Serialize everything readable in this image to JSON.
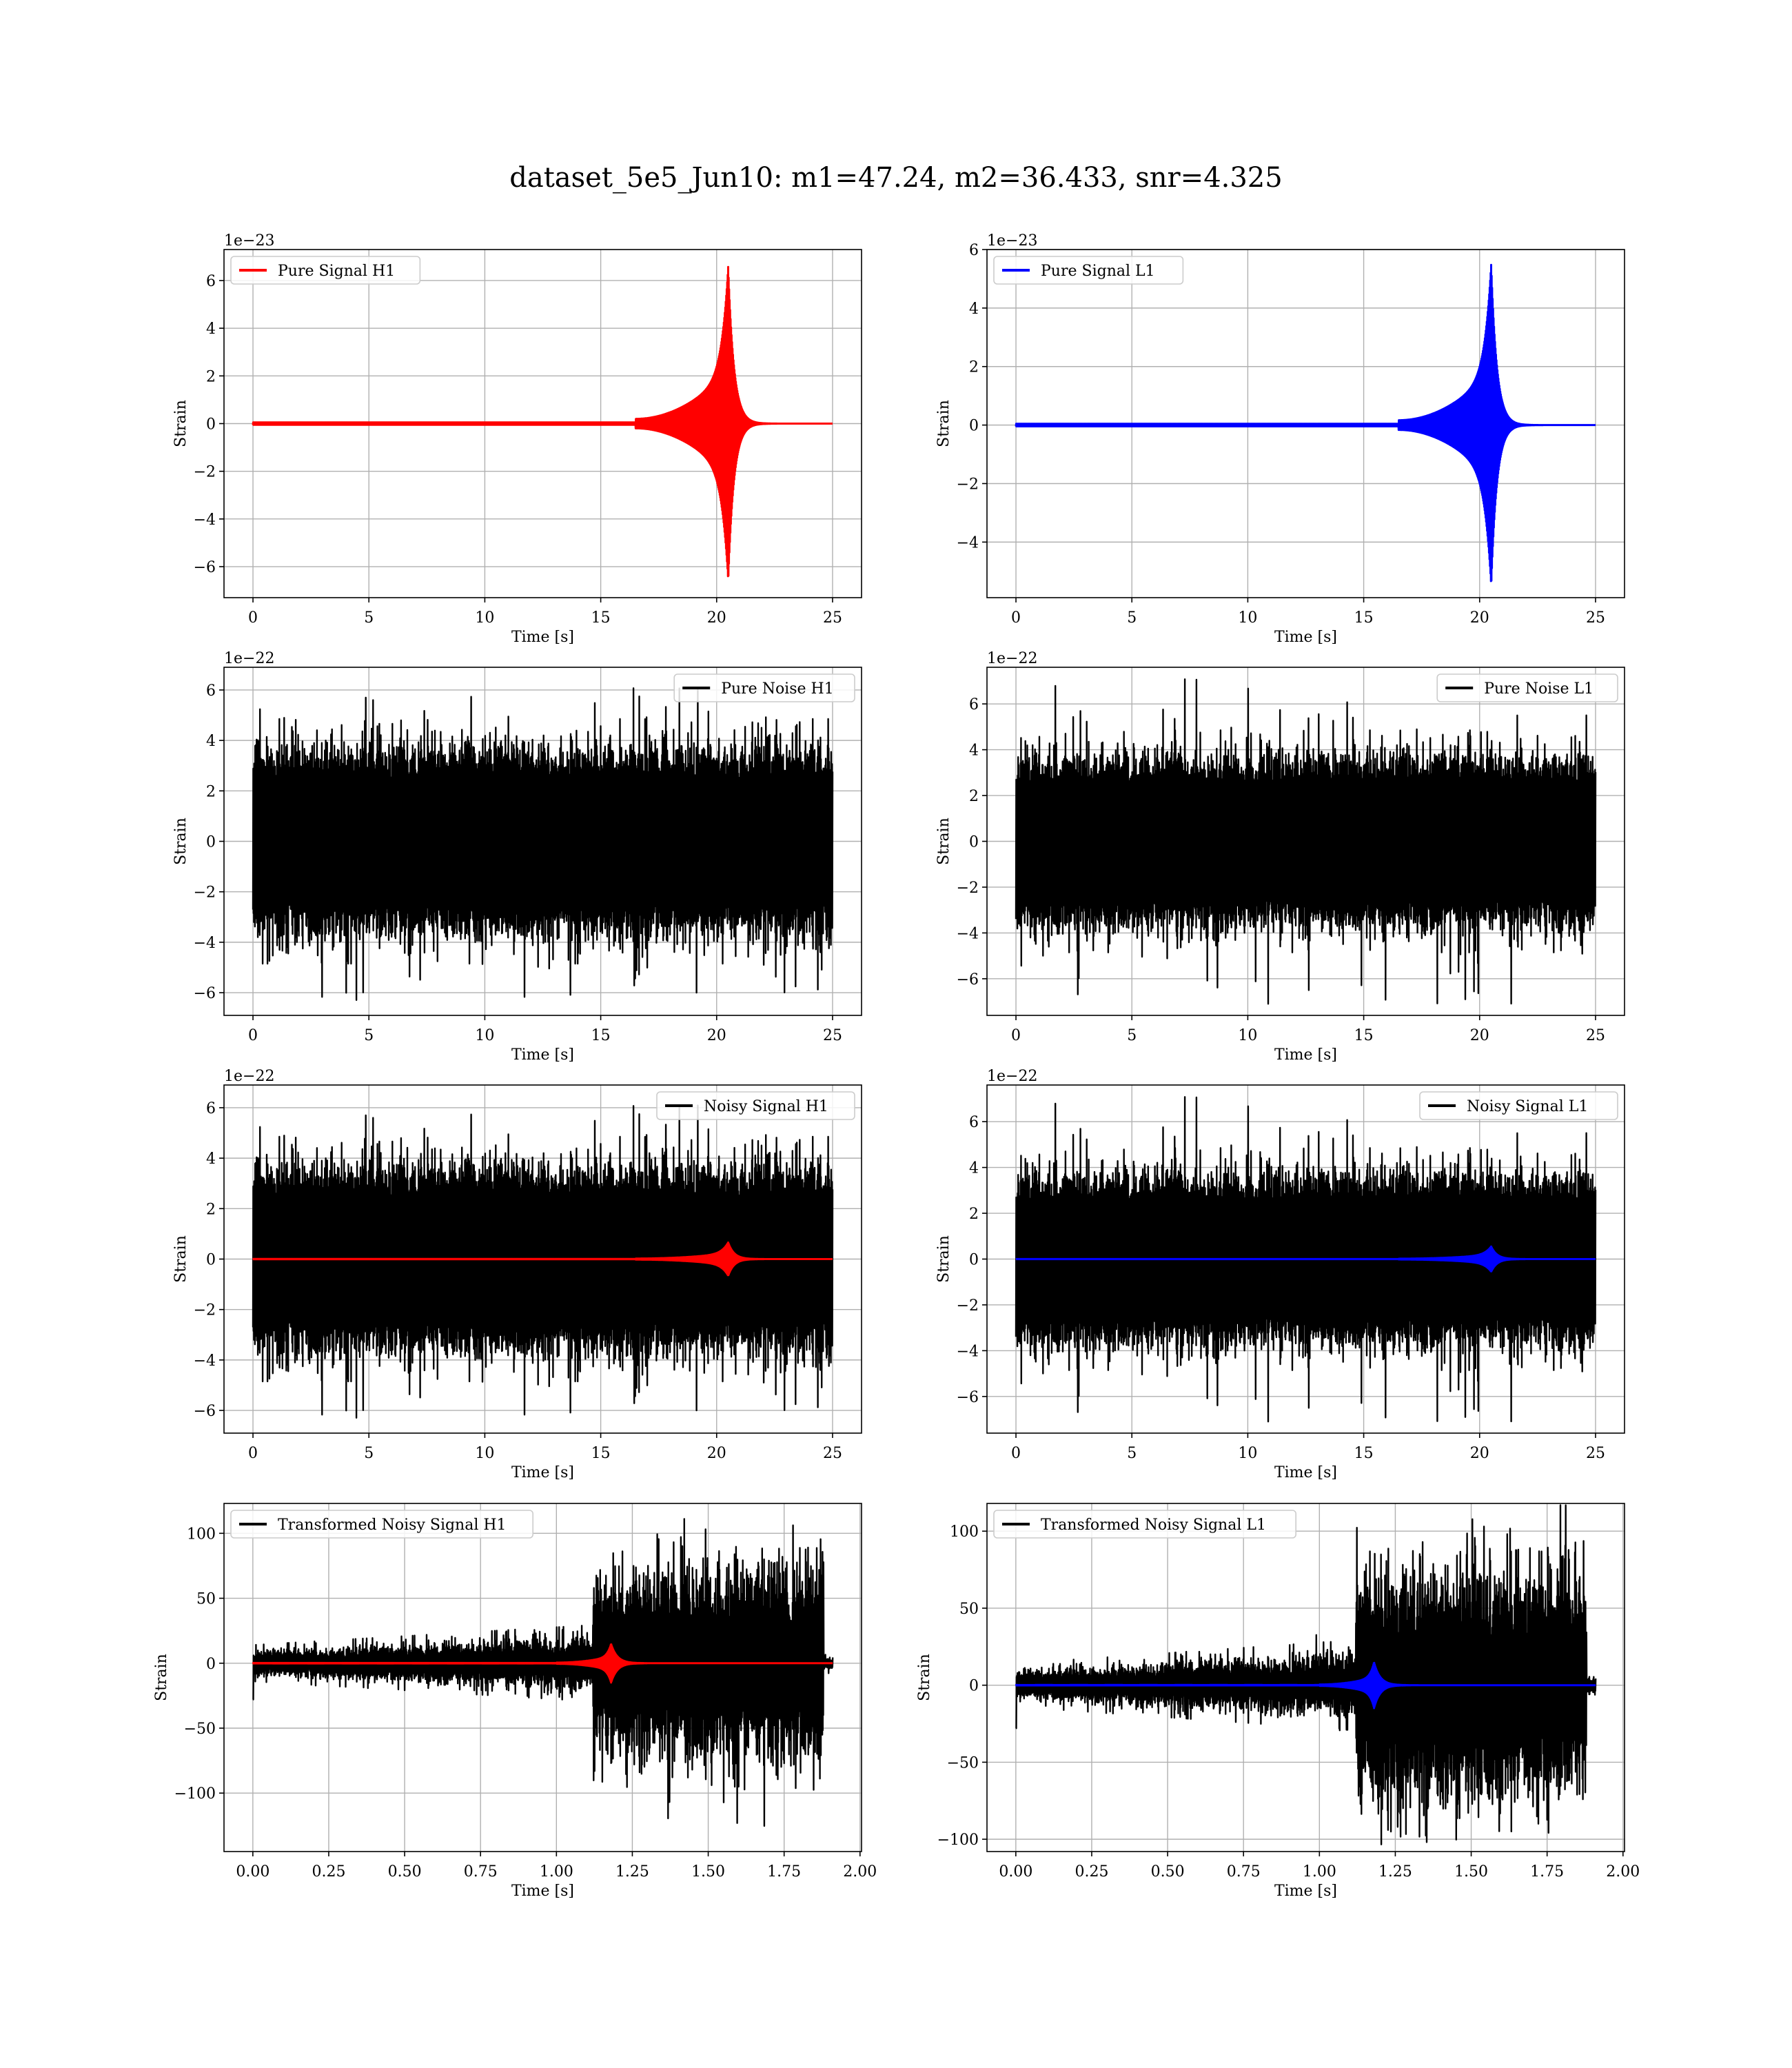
{
  "title": "dataset_5e5_Jun10: m1=47.24, m2=36.433, snr=4.325",
  "chart_data": [
    {
      "id": "pure-signal-h1",
      "type": "line",
      "x_range": [
        -1.25,
        26.25
      ],
      "ylim": [
        -7.3,
        7.3
      ],
      "xticks": [
        0,
        5,
        10,
        15,
        20,
        25
      ],
      "xtick_labels": [
        "0",
        "5",
        "10",
        "15",
        "20",
        "25"
      ],
      "yticks": [
        -6,
        -4,
        -2,
        0,
        2,
        4,
        6
      ],
      "ytick_labels": [
        "−6",
        "−4",
        "−2",
        "0",
        "2",
        "4",
        "6"
      ],
      "offset_text": "1e−23",
      "xlabel": "Time [s]",
      "ylabel": "Strain",
      "legend": "top-left",
      "grid": true,
      "series": [
        {
          "name": "Pure Signal H1",
          "color": "#ff0000",
          "kind": "chirp",
          "t_start": 0,
          "t_end": 25,
          "t_merge": 20.5,
          "peak": 6.6,
          "onset": 16.5
        }
      ]
    },
    {
      "id": "pure-signal-l1",
      "type": "line",
      "x_range": [
        -1.25,
        26.25
      ],
      "ylim": [
        -5.9,
        6.0
      ],
      "xticks": [
        0,
        5,
        10,
        15,
        20,
        25
      ],
      "xtick_labels": [
        "0",
        "5",
        "10",
        "15",
        "20",
        "25"
      ],
      "yticks": [
        -4,
        -2,
        0,
        2,
        4,
        6
      ],
      "ytick_labels": [
        "−4",
        "−2",
        "0",
        "2",
        "4",
        "6"
      ],
      "offset_text": "1e−23",
      "xlabel": "Time [s]",
      "ylabel": "Strain",
      "legend": "top-left",
      "grid": true,
      "series": [
        {
          "name": "Pure Signal L1",
          "color": "#0000ff",
          "kind": "chirp",
          "t_start": 0,
          "t_end": 25,
          "t_merge": 20.5,
          "peak": 5.5,
          "onset": 16.5
        }
      ]
    },
    {
      "id": "pure-noise-h1",
      "type": "line",
      "x_range": [
        -1.25,
        26.25
      ],
      "ylim": [
        -6.9,
        6.9
      ],
      "xticks": [
        0,
        5,
        10,
        15,
        20,
        25
      ],
      "xtick_labels": [
        "0",
        "5",
        "10",
        "15",
        "20",
        "25"
      ],
      "yticks": [
        -6,
        -4,
        -2,
        0,
        2,
        4,
        6
      ],
      "ytick_labels": [
        "−6",
        "−4",
        "−2",
        "0",
        "2",
        "4",
        "6"
      ],
      "offset_text": "1e−22",
      "xlabel": "Time [s]",
      "ylabel": "Strain",
      "legend": "top-right",
      "grid": true,
      "series": [
        {
          "name": "Pure Noise H1",
          "color": "#000000",
          "kind": "noise",
          "t_start": 0,
          "t_end": 25,
          "band": 3.3,
          "peak": 6.3,
          "seed": 11
        }
      ]
    },
    {
      "id": "pure-noise-l1",
      "type": "line",
      "x_range": [
        -1.25,
        26.25
      ],
      "ylim": [
        -7.6,
        7.6
      ],
      "xticks": [
        0,
        5,
        10,
        15,
        20,
        25
      ],
      "xtick_labels": [
        "0",
        "5",
        "10",
        "15",
        "20",
        "25"
      ],
      "yticks": [
        -6,
        -4,
        -2,
        0,
        2,
        4,
        6
      ],
      "ytick_labels": [
        "−6",
        "−4",
        "−2",
        "0",
        "2",
        "4",
        "6"
      ],
      "offset_text": "1e−22",
      "xlabel": "Time [s]",
      "ylabel": "Strain",
      "legend": "top-right",
      "grid": true,
      "series": [
        {
          "name": "Pure Noise L1",
          "color": "#000000",
          "kind": "noise",
          "t_start": 0,
          "t_end": 25,
          "band": 3.3,
          "peak": 7.1,
          "seed": 23
        }
      ]
    },
    {
      "id": "noisy-signal-h1",
      "type": "line",
      "x_range": [
        -1.25,
        26.25
      ],
      "ylim": [
        -6.9,
        6.9
      ],
      "xticks": [
        0,
        5,
        10,
        15,
        20,
        25
      ],
      "xtick_labels": [
        "0",
        "5",
        "10",
        "15",
        "20",
        "25"
      ],
      "yticks": [
        -6,
        -4,
        -2,
        0,
        2,
        4,
        6
      ],
      "ytick_labels": [
        "−6",
        "−4",
        "−2",
        "0",
        "2",
        "4",
        "6"
      ],
      "offset_text": "1e−22",
      "xlabel": "Time [s]",
      "ylabel": "Strain",
      "legend": "top-right",
      "grid": true,
      "series": [
        {
          "name": "Noisy Signal H1",
          "color": "#000000",
          "kind": "noise",
          "t_start": 0,
          "t_end": 25,
          "band": 3.3,
          "peak": 6.3,
          "seed": 11
        },
        {
          "name": "",
          "color": "#ff0000",
          "kind": "chirp",
          "t_start": 0,
          "t_end": 25,
          "t_merge": 20.5,
          "peak": 0.66,
          "onset": 16.5
        }
      ]
    },
    {
      "id": "noisy-signal-l1",
      "type": "line",
      "x_range": [
        -1.25,
        26.25
      ],
      "ylim": [
        -7.6,
        7.6
      ],
      "xticks": [
        0,
        5,
        10,
        15,
        20,
        25
      ],
      "xtick_labels": [
        "0",
        "5",
        "10",
        "15",
        "20",
        "25"
      ],
      "yticks": [
        -6,
        -4,
        -2,
        0,
        2,
        4,
        6
      ],
      "ytick_labels": [
        "−6",
        "−4",
        "−2",
        "0",
        "2",
        "4",
        "6"
      ],
      "offset_text": "1e−22",
      "xlabel": "Time [s]",
      "ylabel": "Strain",
      "legend": "top-right",
      "grid": true,
      "series": [
        {
          "name": "Noisy Signal L1",
          "color": "#000000",
          "kind": "noise",
          "t_start": 0,
          "t_end": 25,
          "band": 3.3,
          "peak": 7.1,
          "seed": 23
        },
        {
          "name": "",
          "color": "#0000ff",
          "kind": "chirp",
          "t_start": 0,
          "t_end": 25,
          "t_merge": 20.5,
          "peak": 0.55,
          "onset": 16.5
        }
      ]
    },
    {
      "id": "transformed-noisy-signal-h1",
      "type": "line",
      "x_range": [
        -0.095,
        2.005
      ],
      "ylim": [
        -145,
        123
      ],
      "xticks": [
        0,
        0.25,
        0.5,
        0.75,
        1.0,
        1.25,
        1.5,
        1.75,
        2.0
      ],
      "xtick_labels": [
        "0.00",
        "0.25",
        "0.50",
        "0.75",
        "1.00",
        "1.25",
        "1.50",
        "1.75",
        "2.00"
      ],
      "yticks": [
        -100,
        -50,
        0,
        50,
        100
      ],
      "ytick_labels": [
        "−100",
        "−50",
        "0",
        "50",
        "100"
      ],
      "offset_text": "",
      "xlabel": "Time [s]",
      "ylabel": "Strain",
      "legend": "top-left",
      "grid": true,
      "series": [
        {
          "name": "Transformed Noisy Signal H1",
          "color": "#000000",
          "kind": "transformed",
          "t_start": 0,
          "t_end": 1.91,
          "t_jump": 1.12,
          "t_drop": 1.88,
          "low_band": 7,
          "high_band": 55,
          "peak": 110,
          "seed": 37
        },
        {
          "name": "",
          "color": "#ff0000",
          "kind": "chirp",
          "t_start": 0,
          "t_end": 1.91,
          "t_merge": 1.18,
          "peak": 15,
          "onset": 1.0,
          "decay": 0.02
        }
      ]
    },
    {
      "id": "transformed-noisy-signal-l1",
      "type": "line",
      "x_range": [
        -0.095,
        2.005
      ],
      "ylim": [
        -108,
        118
      ],
      "xticks": [
        0,
        0.25,
        0.5,
        0.75,
        1.0,
        1.25,
        1.5,
        1.75,
        2.0
      ],
      "xtick_labels": [
        "0.00",
        "0.25",
        "0.50",
        "0.75",
        "1.00",
        "1.25",
        "1.50",
        "1.75",
        "2.00"
      ],
      "yticks": [
        -100,
        -50,
        0,
        50,
        100
      ],
      "ytick_labels": [
        "−100",
        "−50",
        "0",
        "50",
        "100"
      ],
      "offset_text": "",
      "xlabel": "Time [s]",
      "ylabel": "Strain",
      "legend": "top-left",
      "grid": true,
      "series": [
        {
          "name": "Transformed Noisy Signal L1",
          "color": "#000000",
          "kind": "transformed",
          "t_start": 0,
          "t_end": 1.91,
          "t_jump": 1.12,
          "t_drop": 1.88,
          "low_band": 7,
          "high_band": 55,
          "peak": 108,
          "seed": 53
        },
        {
          "name": "",
          "color": "#0000ff",
          "kind": "chirp",
          "t_start": 0,
          "t_end": 1.91,
          "t_merge": 1.18,
          "peak": 15,
          "onset": 1.0,
          "decay": 0.02
        }
      ]
    }
  ]
}
